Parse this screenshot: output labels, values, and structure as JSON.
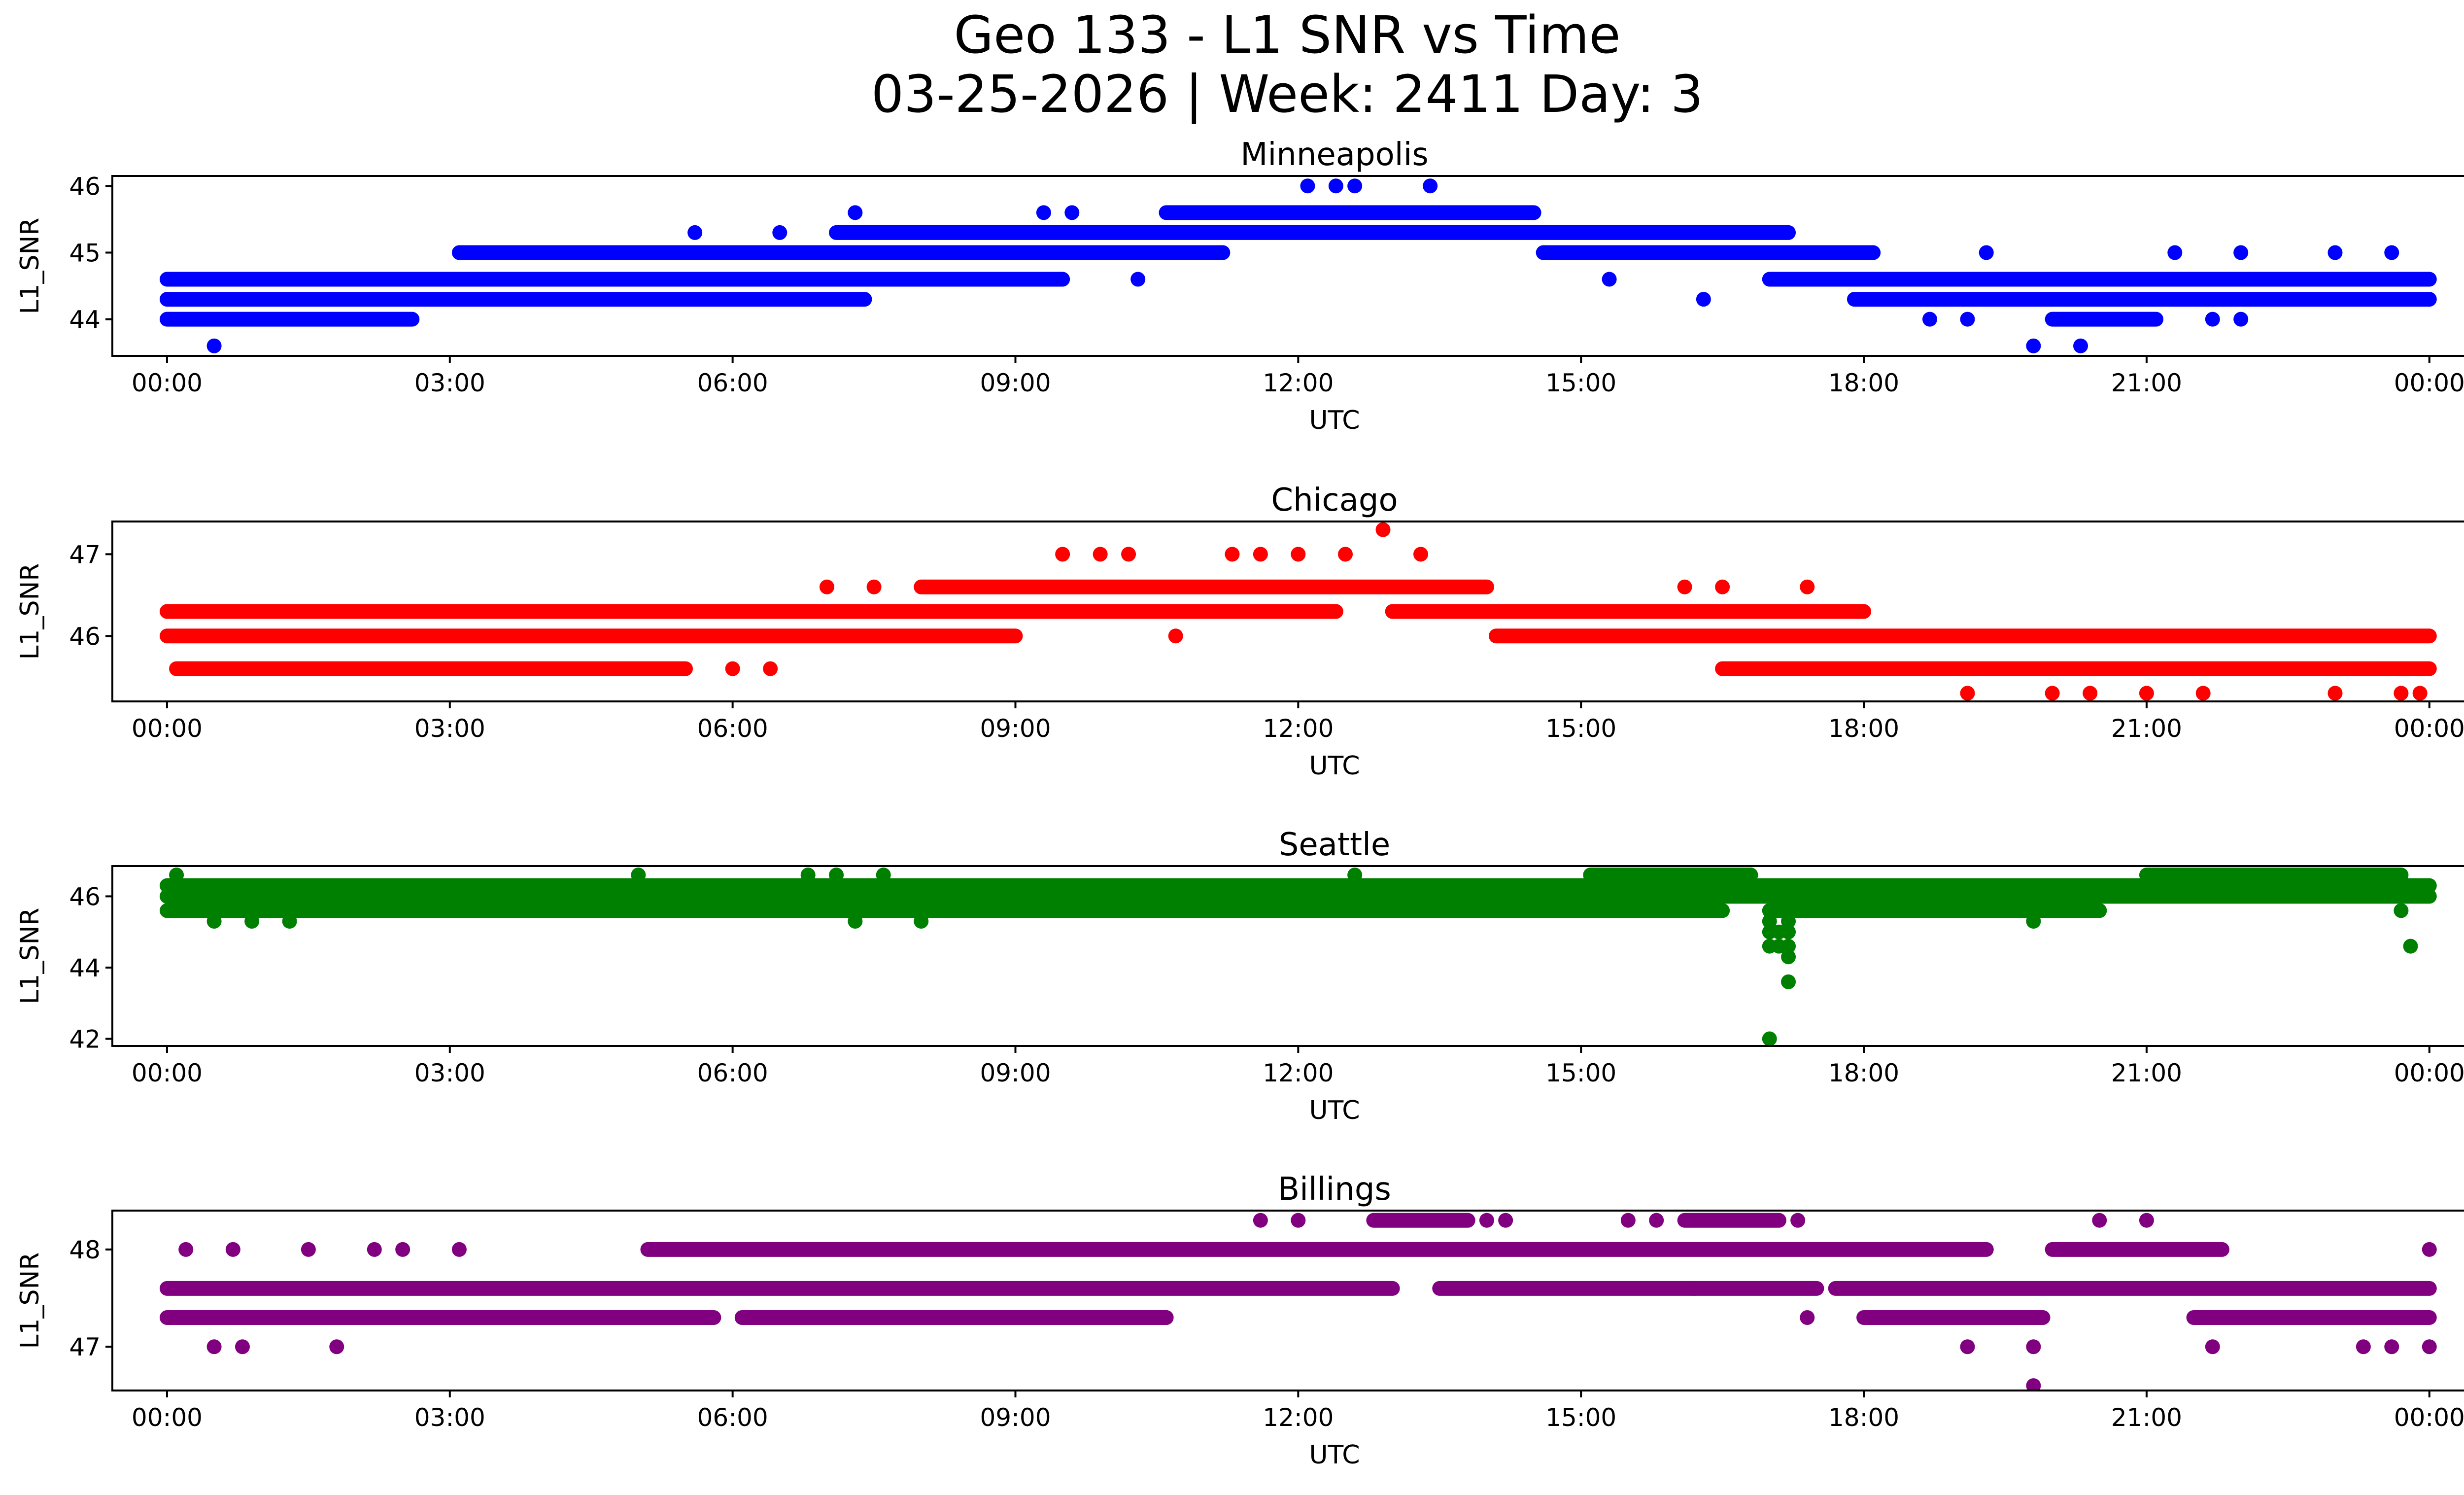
{
  "figure_title_line1": "Geo 133 - L1 SNR vs Time",
  "figure_title_line2": "03-25-2026 | Week: 2411 Day: 3",
  "chart_data": [
    {
      "type": "scatter",
      "title": "Minneapolis",
      "xlabel": "UTC",
      "ylabel": "L1_SNR",
      "color": "#0000ff",
      "xlim": [
        -0.58,
        25.35
      ],
      "ylim": [
        43.45,
        46.15
      ],
      "xticks": [
        0,
        3,
        6,
        9,
        12,
        15,
        18,
        21,
        24
      ],
      "xtick_labels": [
        "00:00",
        "03:00",
        "06:00",
        "09:00",
        "12:00",
        "15:00",
        "18:00",
        "21:00",
        "00:00"
      ],
      "yticks": [
        44,
        45,
        46
      ],
      "ytick_labels": [
        "44",
        "45",
        "46"
      ],
      "bands": [
        {
          "y": 44.0,
          "from": 0.0,
          "to": 2.6
        },
        {
          "y": 44.3,
          "from": 0.0,
          "to": 7.4
        },
        {
          "y": 44.6,
          "from": 0.0,
          "to": 9.5
        },
        {
          "y": 45.0,
          "from": 3.1,
          "to": 11.2
        },
        {
          "y": 45.3,
          "from": 7.1,
          "to": 17.2
        },
        {
          "y": 45.6,
          "from": 10.6,
          "to": 14.5
        },
        {
          "y": 45.0,
          "from": 14.6,
          "to": 18.1
        },
        {
          "y": 44.6,
          "from": 17.0,
          "to": 24.0
        },
        {
          "y": 44.3,
          "from": 17.9,
          "to": 24.0
        },
        {
          "y": 44.0,
          "from": 20.0,
          "to": 21.1
        }
      ],
      "points": [
        [
          0.5,
          43.6
        ],
        [
          12.1,
          46.0
        ],
        [
          12.4,
          46.0
        ],
        [
          12.6,
          46.0
        ],
        [
          13.4,
          46.0
        ],
        [
          19.8,
          43.6
        ],
        [
          20.3,
          43.6
        ],
        [
          7.3,
          45.6
        ],
        [
          9.3,
          45.6
        ],
        [
          9.6,
          45.6
        ],
        [
          16.3,
          44.3
        ],
        [
          10.3,
          44.6
        ],
        [
          15.3,
          44.6
        ],
        [
          19.3,
          45.0
        ],
        [
          21.3,
          45.0
        ],
        [
          22.0,
          45.0
        ],
        [
          23.0,
          45.0
        ],
        [
          23.6,
          45.0
        ],
        [
          5.6,
          45.3
        ],
        [
          6.5,
          45.3
        ],
        [
          18.7,
          44.0
        ],
        [
          19.1,
          44.0
        ],
        [
          21.7,
          44.0
        ],
        [
          22.0,
          44.0
        ]
      ]
    },
    {
      "type": "scatter",
      "title": "Chicago",
      "xlabel": "UTC",
      "ylabel": "L1_SNR",
      "color": "#ff0000",
      "xlim": [
        -0.58,
        25.35
      ],
      "ylim": [
        45.2,
        47.4
      ],
      "xticks": [
        0,
        3,
        6,
        9,
        12,
        15,
        18,
        21,
        24
      ],
      "xtick_labels": [
        "00:00",
        "03:00",
        "06:00",
        "09:00",
        "12:00",
        "15:00",
        "18:00",
        "21:00",
        "00:00"
      ],
      "yticks": [
        46,
        47
      ],
      "ytick_labels": [
        "46",
        "47"
      ],
      "bands": [
        {
          "y": 46.0,
          "from": 0.0,
          "to": 9.0
        },
        {
          "y": 46.3,
          "from": 0.0,
          "to": 12.4
        },
        {
          "y": 45.6,
          "from": 0.1,
          "to": 5.5
        },
        {
          "y": 46.6,
          "from": 8.0,
          "to": 14.0
        },
        {
          "y": 46.3,
          "from": 13.0,
          "to": 18.0
        },
        {
          "y": 46.0,
          "from": 14.1,
          "to": 24.0
        },
        {
          "y": 45.6,
          "from": 16.5,
          "to": 24.0
        }
      ],
      "points": [
        [
          12.9,
          47.3
        ],
        [
          9.5,
          47.0
        ],
        [
          9.9,
          47.0
        ],
        [
          10.2,
          47.0
        ],
        [
          11.3,
          47.0
        ],
        [
          11.6,
          47.0
        ],
        [
          12.0,
          47.0
        ],
        [
          12.5,
          47.0
        ],
        [
          13.3,
          47.0
        ],
        [
          10.7,
          46.0
        ],
        [
          7.0,
          46.6
        ],
        [
          7.5,
          46.6
        ],
        [
          16.1,
          46.6
        ],
        [
          16.5,
          46.6
        ],
        [
          17.4,
          46.6
        ],
        [
          19.1,
          45.3
        ],
        [
          20.0,
          45.3
        ],
        [
          20.4,
          45.3
        ],
        [
          21.0,
          45.3
        ],
        [
          21.6,
          45.3
        ],
        [
          23.0,
          45.3
        ],
        [
          23.7,
          45.3
        ],
        [
          23.9,
          45.3
        ],
        [
          6.0,
          45.6
        ],
        [
          6.4,
          45.6
        ]
      ]
    },
    {
      "type": "scatter",
      "title": "Seattle",
      "xlabel": "UTC",
      "ylabel": "L1_SNR",
      "color": "#008000",
      "xlim": [
        -0.58,
        25.35
      ],
      "ylim": [
        41.8,
        46.85
      ],
      "xticks": [
        0,
        3,
        6,
        9,
        12,
        15,
        18,
        21,
        24
      ],
      "xtick_labels": [
        "00:00",
        "03:00",
        "06:00",
        "09:00",
        "12:00",
        "15:00",
        "18:00",
        "21:00",
        "00:00"
      ],
      "yticks": [
        42,
        44,
        46
      ],
      "ytick_labels": [
        "42",
        "44",
        "46"
      ],
      "bands": [
        {
          "y": 46.0,
          "from": 0.0,
          "to": 24.0
        },
        {
          "y": 46.3,
          "from": 0.0,
          "to": 24.0
        },
        {
          "y": 45.6,
          "from": 0.0,
          "to": 16.5
        },
        {
          "y": 45.6,
          "from": 17.0,
          "to": 20.5
        },
        {
          "y": 46.6,
          "from": 15.1,
          "to": 16.8
        },
        {
          "y": 46.6,
          "from": 21.0,
          "to": 23.7
        }
      ],
      "points": [
        [
          17.0,
          42.0
        ],
        [
          17.2,
          43.6
        ],
        [
          17.2,
          44.3
        ],
        [
          17.0,
          44.6
        ],
        [
          17.1,
          44.6
        ],
        [
          17.2,
          44.6
        ],
        [
          17.0,
          45.0
        ],
        [
          17.1,
          45.0
        ],
        [
          17.2,
          45.0
        ],
        [
          17.0,
          45.3
        ],
        [
          17.2,
          45.3
        ],
        [
          23.8,
          44.6
        ],
        [
          0.1,
          46.6
        ],
        [
          5.0,
          46.6
        ],
        [
          6.8,
          46.6
        ],
        [
          7.1,
          46.6
        ],
        [
          7.6,
          46.6
        ],
        [
          12.6,
          46.6
        ],
        [
          7.3,
          45.3
        ],
        [
          8.0,
          45.3
        ],
        [
          0.5,
          45.3
        ],
        [
          0.9,
          45.3
        ],
        [
          1.3,
          45.3
        ],
        [
          19.8,
          45.3
        ],
        [
          23.7,
          45.6
        ]
      ]
    },
    {
      "type": "scatter",
      "title": "Billings",
      "xlabel": "UTC",
      "ylabel": "L1_SNR",
      "color": "#800080",
      "xlim": [
        -0.58,
        25.35
      ],
      "ylim": [
        46.55,
        48.4
      ],
      "xticks": [
        0,
        3,
        6,
        9,
        12,
        15,
        18,
        21,
        24
      ],
      "xtick_labels": [
        "00:00",
        "03:00",
        "06:00",
        "09:00",
        "12:00",
        "15:00",
        "18:00",
        "21:00",
        "00:00"
      ],
      "yticks": [
        47,
        48
      ],
      "ytick_labels": [
        "47",
        "48"
      ],
      "bands": [
        {
          "y": 47.6,
          "from": 0.0,
          "to": 13.0
        },
        {
          "y": 47.3,
          "from": 0.0,
          "to": 5.8
        },
        {
          "y": 48.0,
          "from": 5.1,
          "to": 19.3
        },
        {
          "y": 47.3,
          "from": 6.1,
          "to": 10.6
        },
        {
          "y": 47.6,
          "from": 13.5,
          "to": 17.5
        },
        {
          "y": 48.3,
          "from": 12.8,
          "to": 13.8
        },
        {
          "y": 48.3,
          "from": 16.1,
          "to": 17.1
        },
        {
          "y": 47.6,
          "from": 17.7,
          "to": 24.0
        },
        {
          "y": 47.3,
          "from": 18.0,
          "to": 19.9
        },
        {
          "y": 48.0,
          "from": 20.0,
          "to": 21.8
        },
        {
          "y": 47.3,
          "from": 21.5,
          "to": 24.0
        }
      ],
      "points": [
        [
          0.2,
          48.0
        ],
        [
          0.7,
          48.0
        ],
        [
          1.5,
          48.0
        ],
        [
          2.2,
          48.0
        ],
        [
          2.5,
          48.0
        ],
        [
          3.1,
          48.0
        ],
        [
          0.5,
          47.0
        ],
        [
          0.8,
          47.0
        ],
        [
          1.8,
          47.0
        ],
        [
          19.8,
          47.0
        ],
        [
          19.8,
          46.6
        ],
        [
          21.7,
          47.0
        ],
        [
          23.3,
          47.0
        ],
        [
          23.6,
          47.0
        ],
        [
          24.0,
          47.0
        ],
        [
          11.6,
          48.3
        ],
        [
          12.0,
          48.3
        ],
        [
          14.0,
          48.3
        ],
        [
          14.2,
          48.3
        ],
        [
          15.5,
          48.3
        ],
        [
          15.8,
          48.3
        ],
        [
          17.3,
          48.3
        ],
        [
          20.5,
          48.3
        ],
        [
          21.0,
          48.3
        ],
        [
          16.2,
          47.6
        ],
        [
          17.4,
          47.3
        ],
        [
          19.1,
          47.0
        ],
        [
          10.6,
          47.3
        ],
        [
          24.0,
          48.0
        ]
      ]
    }
  ]
}
